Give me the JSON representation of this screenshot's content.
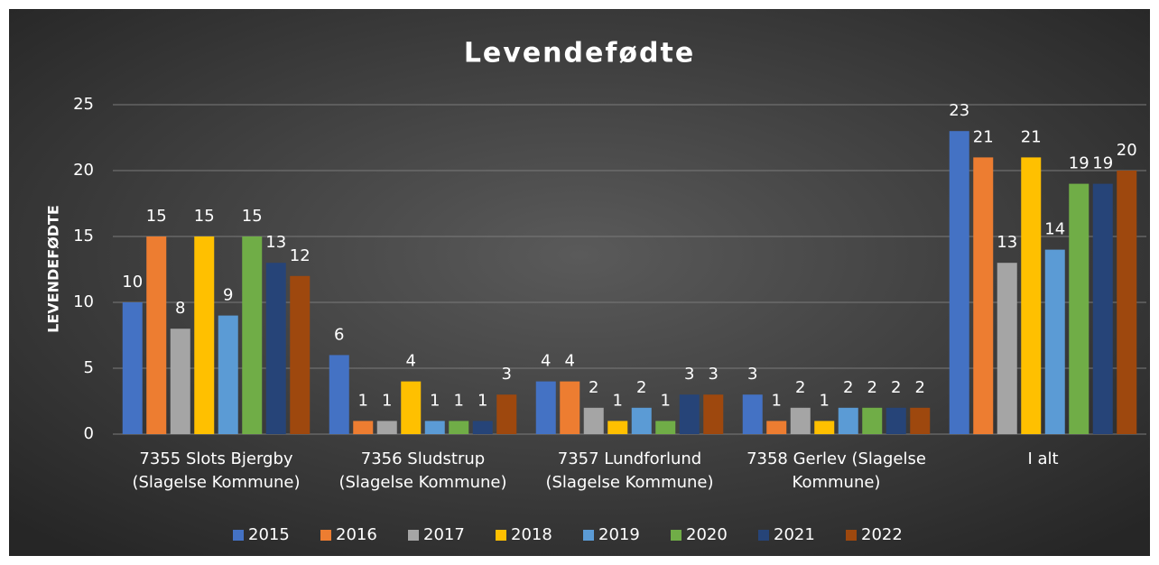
{
  "chart_data": {
    "type": "bar",
    "title": "Levendefødte",
    "y_label": "LEVENDEFØDTE",
    "categories": [
      "7355 Slots Bjergby (Slagelse Kommune)",
      "7356 Sludstrup (Slagelse Kommune)",
      "7357 Lundforlund (Slagelse Kommune)",
      "7358 Gerlev (Slagelse Kommune)",
      "I alt"
    ],
    "series": [
      {
        "name": "2015",
        "color": "#4472c4",
        "values": [
          10,
          6,
          4,
          3,
          23
        ]
      },
      {
        "name": "2016",
        "color": "#ed7d31",
        "values": [
          15,
          1,
          4,
          1,
          21
        ]
      },
      {
        "name": "2017",
        "color": "#a5a5a5",
        "values": [
          8,
          1,
          2,
          2,
          13
        ]
      },
      {
        "name": "2018",
        "color": "#ffc000",
        "values": [
          15,
          4,
          1,
          1,
          21
        ]
      },
      {
        "name": "2019",
        "color": "#5b9bd5",
        "values": [
          9,
          1,
          2,
          2,
          14
        ]
      },
      {
        "name": "2020",
        "color": "#70ad47",
        "values": [
          15,
          1,
          1,
          2,
          19
        ]
      },
      {
        "name": "2021",
        "color": "#264478",
        "values": [
          13,
          1,
          3,
          2,
          19
        ]
      },
      {
        "name": "2022",
        "color": "#9e480e",
        "values": [
          12,
          3,
          3,
          2,
          20
        ]
      }
    ],
    "ylim": [
      0,
      25
    ],
    "yticks": [
      0,
      5,
      10,
      15,
      20,
      25
    ],
    "grid": true,
    "legend": "bottom"
  }
}
